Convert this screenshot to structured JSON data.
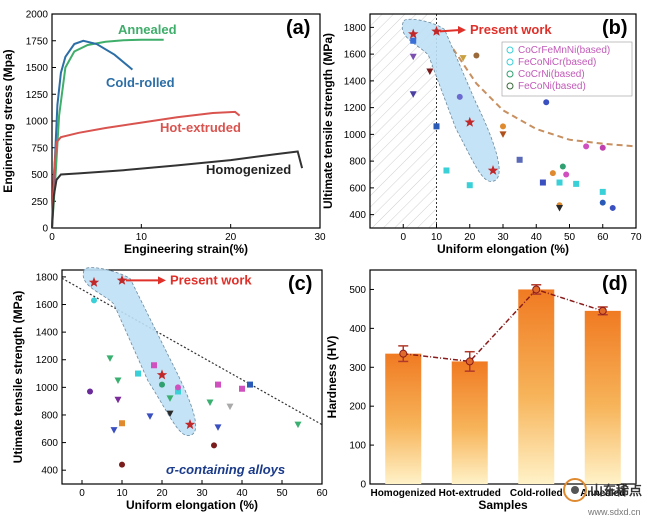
{
  "chart_data": [
    {
      "panel": "(a)",
      "type": "line",
      "xlabel": "Engineering strain(%)",
      "ylabel": "Engineering stress (Mpa)",
      "xlim": [
        0,
        30
      ],
      "ylim": [
        0,
        2000
      ],
      "xticks": [
        0,
        10,
        20,
        30
      ],
      "yticks": [
        0,
        250,
        500,
        750,
        1000,
        1250,
        1500,
        1750,
        2000
      ],
      "series": [
        {
          "name": "Annealed",
          "color": "#3fae6a",
          "x": [
            0,
            0.4,
            0.8,
            1.5,
            2.5,
            4,
            6,
            8,
            10,
            12.5
          ],
          "y": [
            0,
            500,
            1050,
            1500,
            1650,
            1710,
            1740,
            1755,
            1760,
            1760
          ]
        },
        {
          "name": "Cold-rolled",
          "color": "#2c6ea6",
          "x": [
            0,
            0.3,
            0.6,
            1,
            1.5,
            2.5,
            3.5,
            5,
            7,
            9
          ],
          "y": [
            0,
            600,
            1150,
            1450,
            1600,
            1720,
            1750,
            1720,
            1620,
            1480
          ]
        },
        {
          "name": "Hot-extruded",
          "color": "#d9534f",
          "x": [
            0,
            0.2,
            0.5,
            1,
            3,
            6,
            10,
            14,
            18,
            20.5,
            21
          ],
          "y": [
            0,
            500,
            800,
            850,
            890,
            935,
            985,
            1035,
            1075,
            1085,
            1050
          ]
        },
        {
          "name": "Homogenized",
          "color": "#333333",
          "x": [
            0,
            0.2,
            0.5,
            1,
            3,
            8,
            14,
            20,
            25,
            27.5,
            28
          ],
          "y": [
            0,
            300,
            450,
            500,
            510,
            540,
            585,
            635,
            690,
            715,
            560
          ]
        }
      ]
    },
    {
      "panel": "(b)",
      "type": "scatter",
      "xlabel": "Uniform elongation (%)",
      "ylabel": "Ultimate tensile strength (MPa)",
      "xlim": [
        -10,
        70
      ],
      "ylim": [
        300,
        1900
      ],
      "xticks": [
        0,
        10,
        20,
        30,
        40,
        50,
        60,
        70
      ],
      "yticks": [
        400,
        600,
        800,
        1000,
        1200,
        1400,
        1600,
        1800
      ],
      "annotation": "Present work",
      "legend_position": "top-right",
      "legend": [
        {
          "label": "CoCrFeMnNi(based)",
          "marker": "square"
        },
        {
          "label": "FeCoNiCr(based)",
          "marker": "circle"
        },
        {
          "label": "CoCrNi(based)",
          "marker": "circle"
        },
        {
          "label": "FeCoNi(based)",
          "marker": "triangle"
        }
      ],
      "present_work": [
        {
          "x": 3,
          "y": 1750
        },
        {
          "x": 10,
          "y": 1770
        },
        {
          "x": 20,
          "y": 1090
        },
        {
          "x": 27,
          "y": 730
        }
      ],
      "points": [
        {
          "x": 3,
          "y": 1700,
          "m": "square",
          "c": "#3a6fd8"
        },
        {
          "x": 3,
          "y": 1580,
          "m": "triangle",
          "c": "#7a4fb0"
        },
        {
          "x": 3,
          "y": 1300,
          "m": "triangle",
          "c": "#4a3fa0"
        },
        {
          "x": 8,
          "y": 1470,
          "m": "triangle",
          "c": "#7a1c1c"
        },
        {
          "x": 10,
          "y": 1060,
          "m": "square",
          "c": "#2a5ab8"
        },
        {
          "x": 13,
          "y": 730,
          "m": "square",
          "c": "#3ad0d8"
        },
        {
          "x": 17,
          "y": 1280,
          "m": "circle",
          "c": "#6a6ad0"
        },
        {
          "x": 18,
          "y": 1570,
          "m": "triangle",
          "c": "#c9a040"
        },
        {
          "x": 20,
          "y": 620,
          "m": "square",
          "c": "#3ad0d8"
        },
        {
          "x": 22,
          "y": 1590,
          "m": "circle",
          "c": "#9a6a3a"
        },
        {
          "x": 30,
          "y": 1060,
          "m": "circle",
          "c": "#e08a30"
        },
        {
          "x": 30,
          "y": 1000,
          "m": "triangle",
          "c": "#b0501c"
        },
        {
          "x": 32,
          "y": 1390,
          "m": "triangle",
          "c": "#3ab070"
        },
        {
          "x": 35,
          "y": 810,
          "m": "square",
          "c": "#5a6ab8"
        },
        {
          "x": 42,
          "y": 640,
          "m": "square",
          "c": "#3a4fc0"
        },
        {
          "x": 43,
          "y": 1240,
          "m": "circle",
          "c": "#3a4fc0"
        },
        {
          "x": 45,
          "y": 710,
          "m": "circle",
          "c": "#e08a30"
        },
        {
          "x": 47,
          "y": 470,
          "m": "circle",
          "c": "#e08a30"
        },
        {
          "x": 47,
          "y": 450,
          "m": "triangle",
          "c": "#2a2a2a"
        },
        {
          "x": 47,
          "y": 640,
          "m": "square",
          "c": "#3ad0d8"
        },
        {
          "x": 48,
          "y": 760,
          "m": "circle",
          "c": "#30a070"
        },
        {
          "x": 49,
          "y": 700,
          "m": "circle",
          "c": "#d050c0"
        },
        {
          "x": 52,
          "y": 630,
          "m": "square",
          "c": "#3ad0d8"
        },
        {
          "x": 55,
          "y": 910,
          "m": "circle",
          "c": "#d050c0"
        },
        {
          "x": 60,
          "y": 900,
          "m": "circle",
          "c": "#c040b0"
        },
        {
          "x": 60,
          "y": 570,
          "m": "square",
          "c": "#3ad0d8"
        },
        {
          "x": 60,
          "y": 490,
          "m": "circle",
          "c": "#2a5ab8"
        },
        {
          "x": 63,
          "y": 450,
          "m": "circle",
          "c": "#3a4fc0"
        }
      ]
    },
    {
      "panel": "(c)",
      "type": "scatter",
      "xlabel": "Uniform elongation (%)",
      "ylabel": "Utimate tensile strength (MPa)",
      "xlim": [
        -5,
        60
      ],
      "ylim": [
        300,
        1850
      ],
      "xticks": [
        0,
        10,
        20,
        30,
        40,
        50,
        60
      ],
      "yticks": [
        400,
        600,
        800,
        1000,
        1200,
        1400,
        1600,
        1800
      ],
      "annotation": "Present work",
      "note": "σ-containing alloys",
      "present_work": [
        {
          "x": 3,
          "y": 1760
        },
        {
          "x": 10,
          "y": 1775
        },
        {
          "x": 20,
          "y": 1090
        },
        {
          "x": 27,
          "y": 730
        }
      ],
      "points": [
        {
          "x": 2,
          "y": 970,
          "m": "circle",
          "c": "#6a2a9a"
        },
        {
          "x": 3,
          "y": 1630,
          "m": "circle",
          "c": "#3ad0d8"
        },
        {
          "x": 7,
          "y": 1210,
          "m": "triangle",
          "c": "#3ab070"
        },
        {
          "x": 8,
          "y": 690,
          "m": "triangle",
          "c": "#3a4fc0"
        },
        {
          "x": 9,
          "y": 910,
          "m": "triangle",
          "c": "#7a2a9a"
        },
        {
          "x": 9,
          "y": 1050,
          "m": "triangle",
          "c": "#3ab070"
        },
        {
          "x": 10,
          "y": 740,
          "m": "square",
          "c": "#e08a30"
        },
        {
          "x": 10,
          "y": 440,
          "m": "circle",
          "c": "#7a1c1c"
        },
        {
          "x": 14,
          "y": 1100,
          "m": "square",
          "c": "#3ad0d8"
        },
        {
          "x": 17,
          "y": 790,
          "m": "triangle",
          "c": "#3a4fc0"
        },
        {
          "x": 18,
          "y": 1160,
          "m": "square",
          "c": "#d050c0"
        },
        {
          "x": 20,
          "y": 1020,
          "m": "circle",
          "c": "#30a070"
        },
        {
          "x": 22,
          "y": 920,
          "m": "triangle",
          "c": "#3ab070"
        },
        {
          "x": 22,
          "y": 810,
          "m": "triangle",
          "c": "#2a2a2a"
        },
        {
          "x": 24,
          "y": 970,
          "m": "square",
          "c": "#3ad0d8"
        },
        {
          "x": 24,
          "y": 1000,
          "m": "circle",
          "c": "#d050c0"
        },
        {
          "x": 32,
          "y": 890,
          "m": "triangle",
          "c": "#3ab070"
        },
        {
          "x": 33,
          "y": 580,
          "m": "circle",
          "c": "#7a1c1c"
        },
        {
          "x": 34,
          "y": 1020,
          "m": "square",
          "c": "#d050c0"
        },
        {
          "x": 34,
          "y": 710,
          "m": "triangle",
          "c": "#3a4fc0"
        },
        {
          "x": 37,
          "y": 860,
          "m": "triangle",
          "c": "#aaaaaa"
        },
        {
          "x": 40,
          "y": 990,
          "m": "square",
          "c": "#d050c0"
        },
        {
          "x": 42,
          "y": 1020,
          "m": "square",
          "c": "#2a5ab8"
        },
        {
          "x": 54,
          "y": 730,
          "m": "triangle",
          "c": "#3ab070"
        }
      ]
    },
    {
      "panel": "(d)",
      "type": "bar",
      "xlabel": "Samples",
      "ylabel": "Hardness (HV)",
      "ylim": [
        0,
        550
      ],
      "yticks": [
        0,
        100,
        200,
        300,
        400,
        500
      ],
      "categories": [
        "Homogenized",
        "Hot-extruded",
        "Cold-rolled",
        "Annealed"
      ],
      "values": [
        335,
        315,
        500,
        445
      ],
      "errors": [
        20,
        25,
        12,
        10
      ]
    }
  ],
  "watermark": {
    "text": "山东稀点",
    "sub": "www.sdxd.cn"
  }
}
